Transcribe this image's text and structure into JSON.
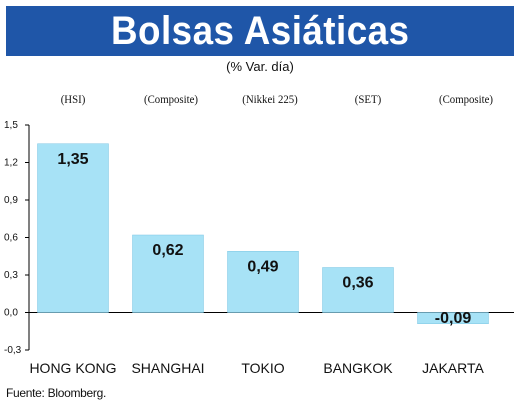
{
  "title": "Bolsas Asiáticas",
  "subtitle": "(% Var. día)",
  "source": "Fuente: Bloomberg.",
  "colors": {
    "banner": "#1f56a8",
    "bar": "#a7e2f6",
    "bar_edge": "#7cc6e3"
  },
  "chart_data": {
    "type": "bar",
    "categories": [
      "HONG KONG",
      "SHANGHAI",
      "TOKIO",
      "BANGKOK",
      "JAKARTA"
    ],
    "index_labels": [
      "(HSI)",
      "(Composite)",
      "(Nikkei 225)",
      "(SET)",
      "(Composite)"
    ],
    "values": [
      1.35,
      0.62,
      0.49,
      0.36,
      -0.09
    ],
    "value_labels": [
      "1,35",
      "0,62",
      "0,49",
      "0,36",
      "-0,09"
    ],
    "ylim": [
      -0.3,
      1.5
    ],
    "yticks": [
      -0.3,
      0.0,
      0.3,
      0.6,
      0.9,
      1.2,
      1.5
    ],
    "ytick_labels": [
      "-0,3",
      "0,0",
      "0,3",
      "0,6",
      "0,9",
      "1,2",
      "1,5"
    ],
    "grid": false
  }
}
